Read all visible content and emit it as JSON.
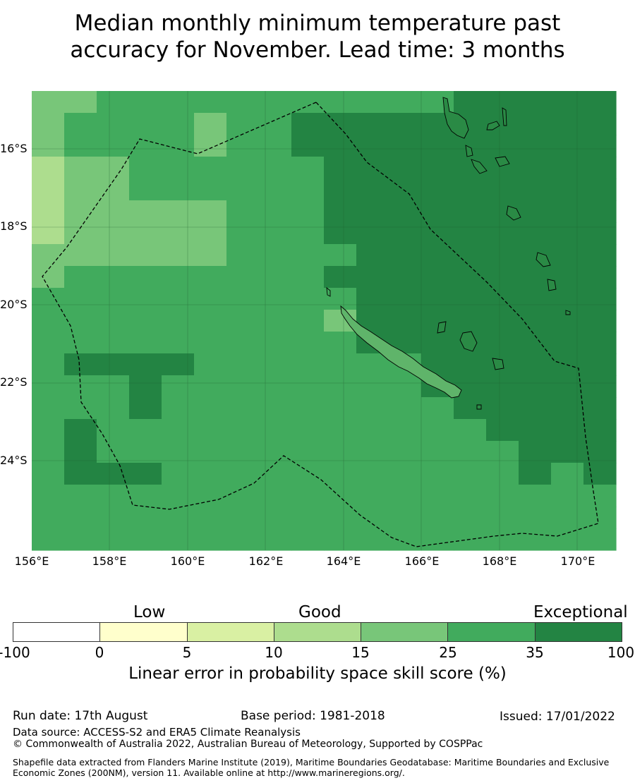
{
  "title_line1": "Median monthly minimum temperature past",
  "title_line2": "accuracy for November. Lead time: 3 months",
  "map": {
    "lat_labels": [
      "16°S",
      "18°S",
      "20°S",
      "22°S",
      "24°S"
    ],
    "lon_labels": [
      "156°E",
      "158°E",
      "160°E",
      "162°E",
      "164°E",
      "166°E",
      "168°E",
      "170°E"
    ],
    "colors": {
      "land": "#a7d98c",
      "gridline": "#1e5a2c",
      "outline": "#000000"
    }
  },
  "legend": {
    "categories": [
      "Low",
      "Good",
      "Exceptional"
    ],
    "ticks": [
      "-100",
      "0",
      "5",
      "10",
      "15",
      "25",
      "35",
      "100"
    ],
    "colors": [
      "#ffffff",
      "#ffffcc",
      "#d9f0a3",
      "#addd8e",
      "#78c679",
      "#41ab5d",
      "#238443"
    ],
    "title": "Linear error in probability space skill score (%)"
  },
  "footer": {
    "run_date": "Run date: 17th August",
    "base_period": "Base period: 1981-2018",
    "issued": "Issued: 17/01/2022",
    "data_source": "Data source: ACCESS-S2 and ERA5 Climate Reanalysis",
    "copyright": "© Commonwealth of Australia 2022, Australian Bureau of Meteorology, Supported by COSPPac",
    "shapefile": "Shapefile data extracted from Flanders Marine Institute (2019), Maritime Boundaries Geodatabase: Maritime Boundaries and Exclusive Economic Zones (200NM), version 11. Available online at http://www.marineregions.org/."
  }
}
